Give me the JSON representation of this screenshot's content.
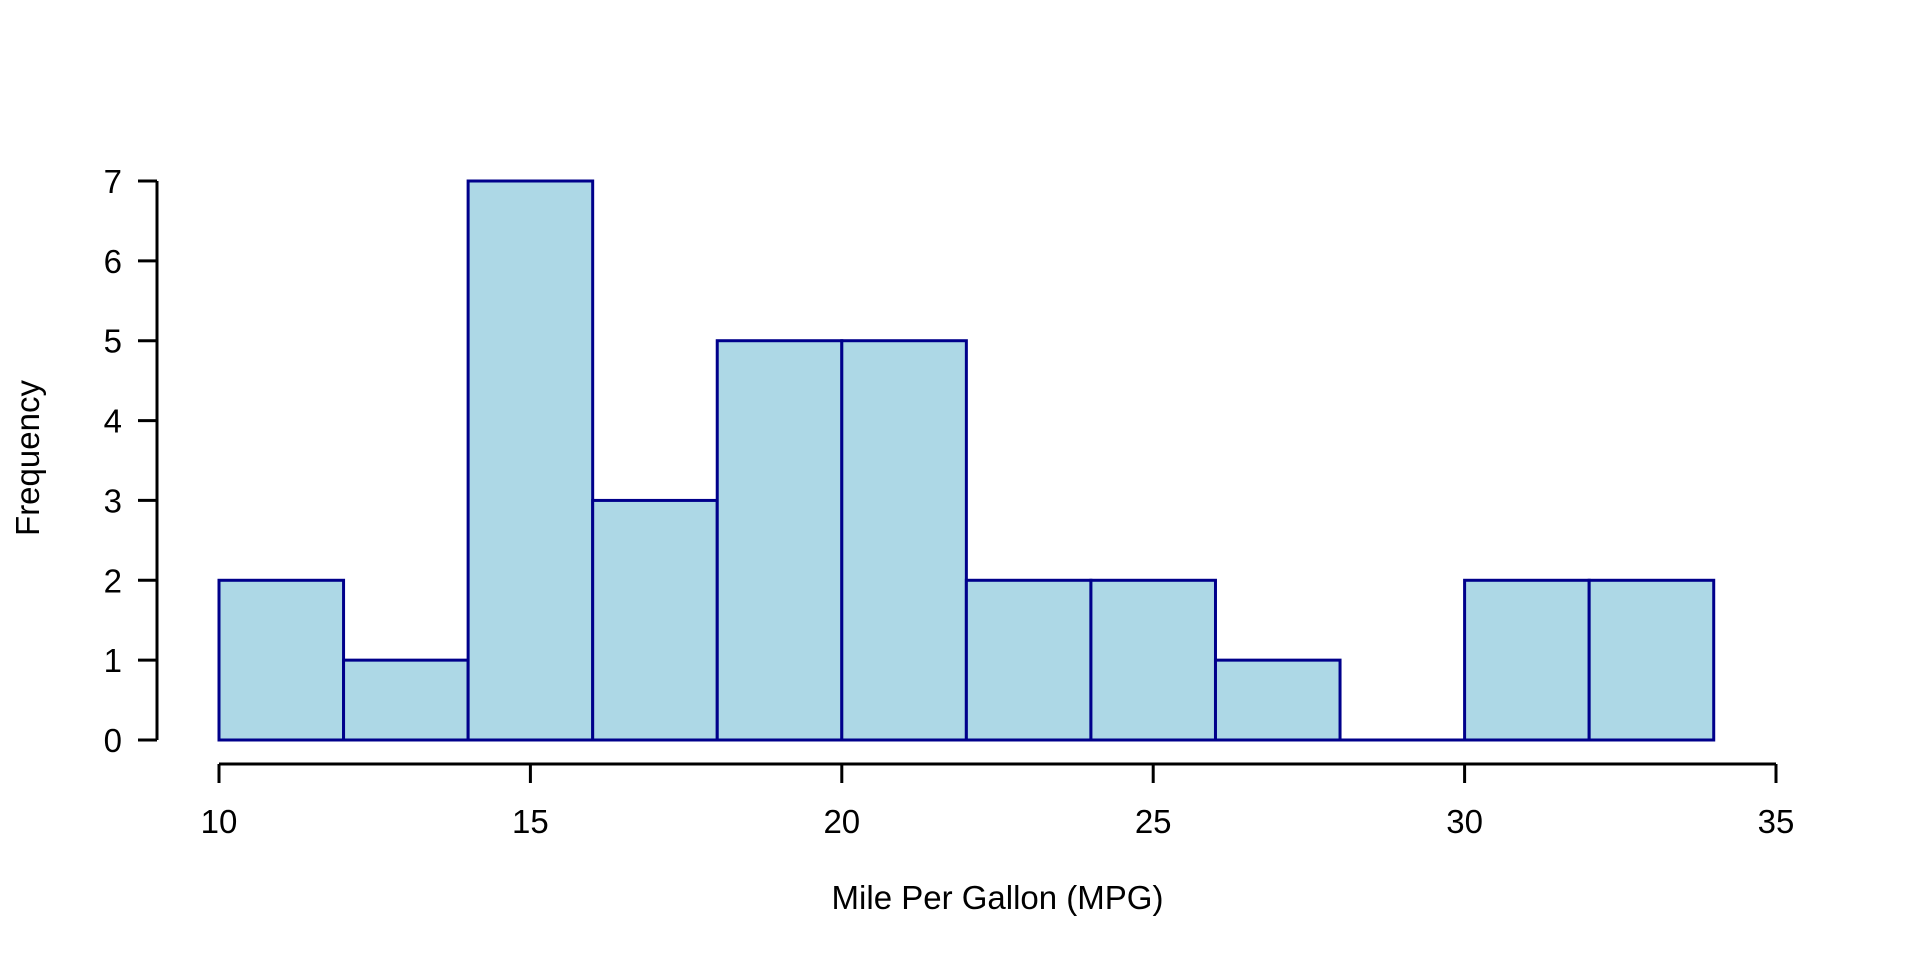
{
  "figure": {
    "background": "#ffffff"
  },
  "chart_data": {
    "type": "bar",
    "subtype": "histogram",
    "title": "",
    "xlabel": "Mile Per Gallon (MPG)",
    "ylabel": "Frequency",
    "bin_edges": [
      10,
      12,
      14,
      16,
      18,
      20,
      22,
      24,
      26,
      28,
      30,
      32,
      34
    ],
    "counts": [
      2,
      1,
      7,
      3,
      5,
      5,
      2,
      2,
      1,
      0,
      2,
      2
    ],
    "x_tick_values": [
      10,
      15,
      20,
      25,
      30,
      35
    ],
    "x_tick_labels": [
      "10",
      "15",
      "20",
      "25",
      "30",
      "35"
    ],
    "y_tick_values": [
      0,
      1,
      2,
      3,
      4,
      5,
      6,
      7
    ],
    "y_tick_labels": [
      "0",
      "1",
      "2",
      "3",
      "4",
      "5",
      "6",
      "7"
    ],
    "xlim": [
      10,
      35
    ],
    "ylim": [
      0,
      7
    ],
    "grid": false,
    "legend": null,
    "colors": {
      "bar_fill": "#ADD8E6",
      "bar_border": "#00008B",
      "axis": "#000000",
      "text": "#000000"
    }
  }
}
